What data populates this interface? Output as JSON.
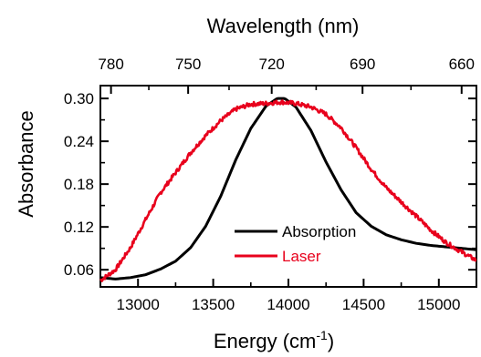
{
  "chart_data": {
    "type": "line",
    "title": "",
    "xlabel": "Energy",
    "xlabel_unit_base": "cm",
    "xlabel_unit_exp": "-1",
    "x2label": "Wavelength (nm)",
    "ylabel": "Absorbance",
    "xlim": [
      12750,
      15250
    ],
    "ylim": [
      0.036,
      0.318
    ],
    "xticks": [
      13000,
      13500,
      14000,
      14500,
      15000
    ],
    "xtick_labels": [
      "13000",
      "13500",
      "14000",
      "14500",
      "15000"
    ],
    "x2ticks_nm": [
      780,
      750,
      720,
      690,
      660
    ],
    "x2tick_labels": [
      "780",
      "750",
      "720",
      "690",
      "660"
    ],
    "yticks": [
      0.06,
      0.12,
      0.18,
      0.24,
      0.3
    ],
    "ytick_labels": [
      "0.06",
      "0.12",
      "0.18",
      "0.24",
      "0.30"
    ],
    "grid": false,
    "legend_position": "bottom-center",
    "series": [
      {
        "name": "Absorption",
        "color": "#000000",
        "x": [
          12750,
          12850,
          12950,
          13050,
          13150,
          13250,
          13350,
          13450,
          13550,
          13650,
          13750,
          13850,
          13925,
          13975,
          14050,
          14150,
          14250,
          14350,
          14450,
          14550,
          14650,
          14750,
          14850,
          14950,
          15050,
          15150,
          15250
        ],
        "y": [
          0.049,
          0.047,
          0.049,
          0.053,
          0.061,
          0.072,
          0.091,
          0.121,
          0.163,
          0.214,
          0.258,
          0.289,
          0.3,
          0.3,
          0.288,
          0.255,
          0.211,
          0.172,
          0.14,
          0.121,
          0.109,
          0.102,
          0.097,
          0.094,
          0.092,
          0.09,
          0.088
        ]
      },
      {
        "name": "Laser",
        "color": "#e8001c",
        "x": [
          12750,
          12850,
          12950,
          13050,
          13150,
          13250,
          13350,
          13450,
          13550,
          13650,
          13750,
          13850,
          13950,
          14050,
          14150,
          14250,
          14350,
          14450,
          14550,
          14650,
          14750,
          14850,
          14950,
          15050,
          15150,
          15250
        ],
        "y": [
          0.045,
          0.06,
          0.091,
          0.13,
          0.168,
          0.196,
          0.224,
          0.248,
          0.269,
          0.285,
          0.292,
          0.293,
          0.295,
          0.293,
          0.288,
          0.278,
          0.259,
          0.231,
          0.201,
          0.175,
          0.155,
          0.135,
          0.115,
          0.098,
          0.085,
          0.073
        ]
      }
    ]
  }
}
